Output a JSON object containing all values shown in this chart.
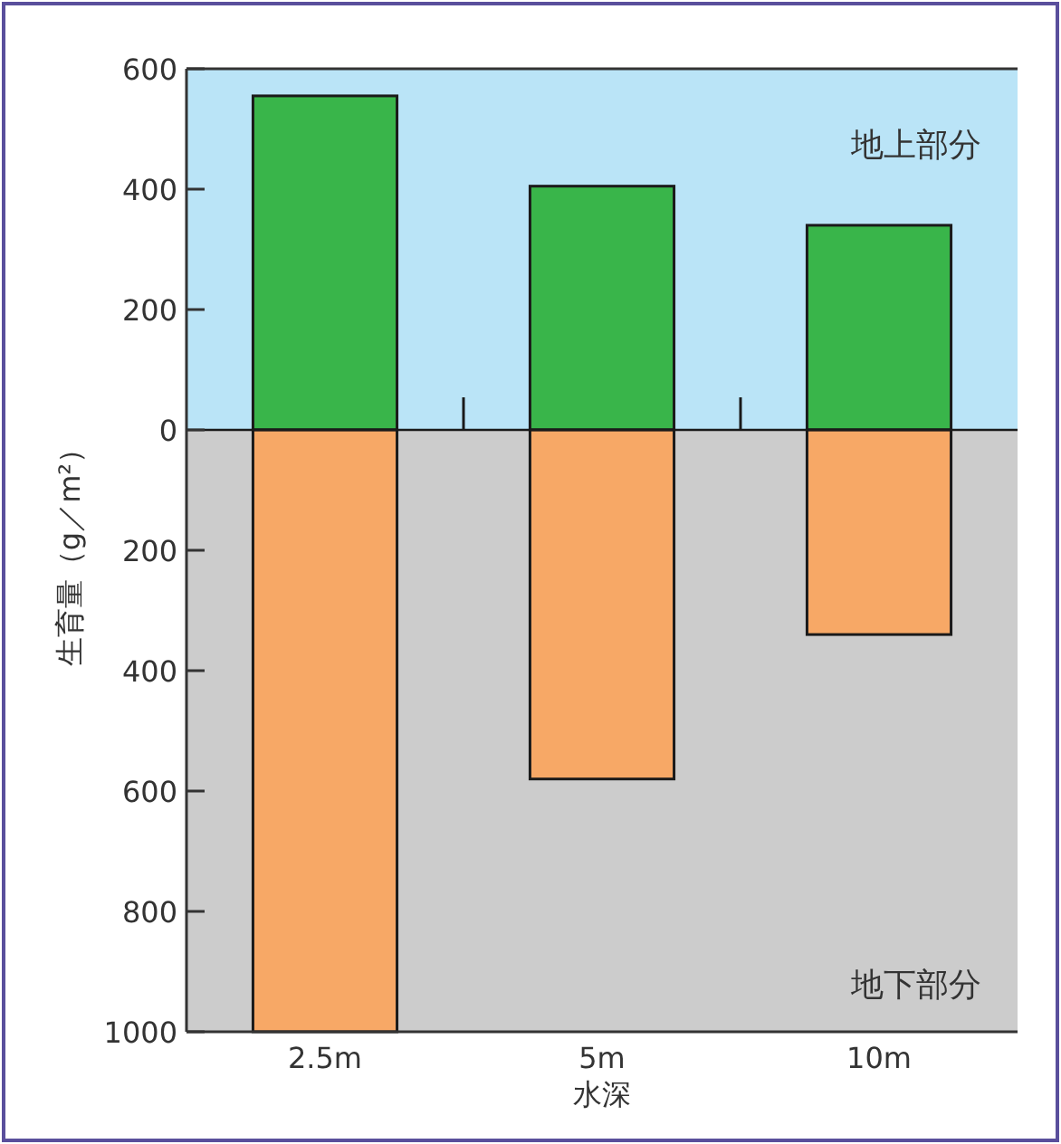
{
  "chart_data": {
    "type": "bar",
    "stacked": true,
    "categories": [
      "2.5m",
      "5m",
      "10m"
    ],
    "xlabel": "水深",
    "ylabel": "生育量（g／m²）",
    "series": [
      {
        "color": "#39b54a",
        "values": [
          555,
          405,
          340
        ]
      },
      {
        "color": "#f7a866",
        "values": [
          -1000,
          -580,
          -340
        ]
      }
    ],
    "ylim": [
      -1000,
      600
    ],
    "yticks": [
      600,
      400,
      200,
      0,
      {
        "value": -200,
        "label": "200"
      },
      {
        "value": -400,
        "label": "400"
      },
      {
        "value": -600,
        "label": "600"
      },
      {
        "value": -800,
        "label": "800"
      },
      {
        "value": -1000,
        "label": "1000"
      }
    ],
    "bands": [
      {
        "axis": "y",
        "from": 0,
        "to": 600,
        "label": "地上部分",
        "color": "#bae4f7"
      },
      {
        "axis": "y",
        "from": -1000,
        "to": 0,
        "label": "地下部分",
        "color": "#cccccc"
      }
    ]
  }
}
